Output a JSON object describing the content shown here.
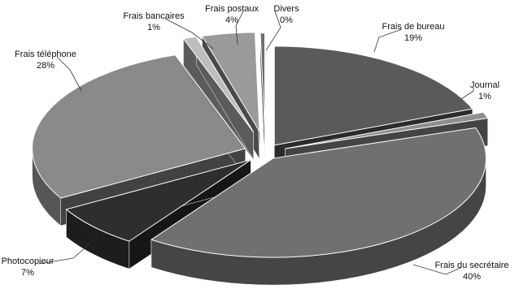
{
  "chart_data": {
    "type": "pie",
    "style": "3d-exploded",
    "legend": "none",
    "slices": [
      {
        "label": "Frais de bureau",
        "value": 19,
        "percent_label": "19%",
        "color": "#5a5a5a"
      },
      {
        "label": "Journal",
        "value": 1,
        "percent_label": "1%",
        "color": "#8e8e8e"
      },
      {
        "label": "Frais du secrétaire",
        "value": 40,
        "percent_label": "40%",
        "color": "#707070"
      },
      {
        "label": "Photocopieur",
        "value": 7,
        "percent_label": "7%",
        "color": "#2e2e2e"
      },
      {
        "label": "Frais téléphone",
        "value": 28,
        "percent_label": "28%",
        "color": "#8a8a8a"
      },
      {
        "label": "Frais bancaires",
        "value": 1,
        "percent_label": "1%",
        "color": "#bdbdbd"
      },
      {
        "label": "Frais postaux",
        "value": 4,
        "percent_label": "4%",
        "color": "#9a9a9a"
      },
      {
        "label": "Divers",
        "value": 0,
        "percent_label": "0%",
        "color": "#6e6e6e"
      }
    ]
  }
}
